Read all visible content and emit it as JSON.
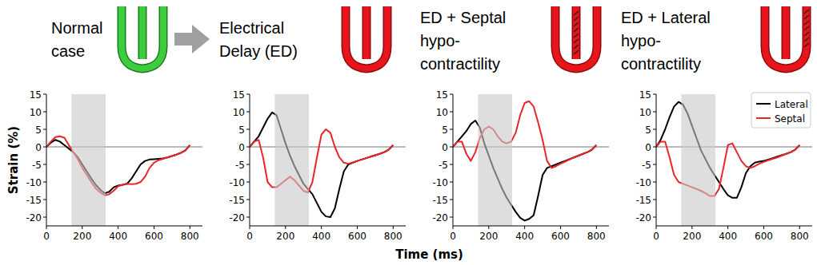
{
  "x_label": "Time (ms)",
  "chart_data": [
    {
      "type": "line",
      "title": [
        "Normal",
        "case"
      ],
      "y_label": "Strain (%)",
      "xlim": [
        0,
        870
      ],
      "xticks": [
        0,
        200,
        400,
        600,
        800
      ],
      "ylim": [
        -22.5,
        15
      ],
      "yticks": [
        -20,
        -15,
        -10,
        -5,
        0,
        5,
        10,
        15
      ],
      "shaded_region": [
        140,
        330
      ],
      "hline": 0,
      "x": [
        0,
        25,
        50,
        75,
        100,
        125,
        150,
        175,
        200,
        225,
        250,
        275,
        300,
        325,
        350,
        375,
        400,
        425,
        450,
        475,
        500,
        525,
        550,
        575,
        600,
        625,
        650,
        675,
        700,
        725,
        750,
        775,
        800
      ],
      "series": [
        {
          "name": "Lateral",
          "color": "#000000",
          "values": [
            0,
            1.2,
            2,
            1.5,
            0.5,
            -0.5,
            -1.5,
            -3,
            -5,
            -7,
            -9,
            -10.8,
            -12.2,
            -13.2,
            -12.8,
            -11.5,
            -11,
            -10.8,
            -10.5,
            -9,
            -7,
            -5,
            -4,
            -3.6,
            -3.5,
            -3.4,
            -3.3,
            -3,
            -2.6,
            -2.2,
            -1.7,
            -1,
            0.5
          ]
        },
        {
          "name": "Septal",
          "color": "#e8262b",
          "values": [
            0,
            1.5,
            2.8,
            3,
            2.6,
            0.5,
            -1.5,
            -3.5,
            -6,
            -8,
            -10,
            -11.8,
            -13,
            -13.8,
            -13.5,
            -12.5,
            -11.2,
            -10.8,
            -10.5,
            -10.6,
            -10.5,
            -10,
            -8.5,
            -6,
            -4.5,
            -3.8,
            -3.4,
            -3,
            -2.6,
            -2.2,
            -1.7,
            -1,
            0.5
          ]
        }
      ]
    },
    {
      "type": "line",
      "title": [
        "Electrical",
        "Delay (ED)"
      ],
      "xlim": [
        0,
        870
      ],
      "xticks": [
        0,
        200,
        400,
        600,
        800
      ],
      "ylim": [
        -22.5,
        15
      ],
      "yticks": [
        -20,
        -15,
        -10,
        -5,
        0,
        5,
        10,
        15
      ],
      "shaded_region": [
        140,
        330
      ],
      "hline": 0,
      "x": [
        0,
        25,
        50,
        75,
        100,
        125,
        150,
        175,
        200,
        225,
        250,
        275,
        300,
        325,
        350,
        375,
        400,
        425,
        450,
        475,
        500,
        525,
        550,
        575,
        600,
        625,
        650,
        675,
        700,
        725,
        750,
        775,
        800
      ],
      "series": [
        {
          "name": "Lateral",
          "color": "#000000",
          "values": [
            0,
            1.5,
            3,
            5.5,
            8,
            9.8,
            9,
            5,
            1,
            -2.5,
            -5.5,
            -8,
            -10.5,
            -12,
            -13.5,
            -16,
            -18.5,
            -19.8,
            -20,
            -17.5,
            -12,
            -7,
            -5,
            -4.5,
            -4,
            -3.6,
            -3.2,
            -2.8,
            -2.4,
            -2,
            -1.5,
            -0.8,
            0.5
          ]
        },
        {
          "name": "Septal",
          "color": "#e8262b",
          "values": [
            0,
            1.5,
            2,
            -3,
            -10,
            -11.5,
            -11.5,
            -10.5,
            -9.5,
            -8.5,
            -9.5,
            -11,
            -12.5,
            -13,
            -10,
            -3,
            3.5,
            5,
            4,
            0,
            -3,
            -4.5,
            -4.8,
            -4.5,
            -4,
            -3.6,
            -3.2,
            -2.8,
            -2.4,
            -2,
            -1.5,
            -0.8,
            0.5
          ]
        }
      ]
    },
    {
      "type": "line",
      "title": [
        "ED + Septal",
        "hypo-",
        "contractility"
      ],
      "xlim": [
        0,
        870
      ],
      "xticks": [
        0,
        200,
        400,
        600,
        800
      ],
      "ylim": [
        -22.5,
        15
      ],
      "yticks": [
        -20,
        -15,
        -10,
        -5,
        0,
        5,
        10,
        15
      ],
      "shaded_region": [
        140,
        330
      ],
      "hline": 0,
      "x": [
        0,
        25,
        50,
        75,
        100,
        125,
        150,
        175,
        200,
        225,
        250,
        275,
        300,
        325,
        350,
        375,
        400,
        425,
        450,
        475,
        500,
        525,
        550,
        575,
        600,
        625,
        650,
        675,
        700,
        725,
        750,
        775,
        800
      ],
      "series": [
        {
          "name": "Lateral",
          "color": "#000000",
          "values": [
            0,
            1.5,
            3,
            4.5,
            6.5,
            7.5,
            5.5,
            1,
            -2.5,
            -6,
            -9,
            -12,
            -14.5,
            -16.5,
            -18.5,
            -20.2,
            -21,
            -20.5,
            -19.5,
            -14,
            -8,
            -6,
            -5.5,
            -5,
            -4.5,
            -4,
            -3.5,
            -3,
            -2.5,
            -2,
            -1.5,
            -0.8,
            0.5
          ]
        },
        {
          "name": "Septal",
          "color": "#e8262b",
          "values": [
            0,
            1.5,
            1.5,
            -2,
            -4,
            -1.5,
            2.5,
            5,
            5.8,
            5,
            3,
            1.5,
            1,
            1.5,
            4,
            9,
            12.5,
            13,
            11.5,
            7,
            2,
            -4,
            -6,
            -5.5,
            -4.8,
            -4.2,
            -3.6,
            -3,
            -2.5,
            -2,
            -1.5,
            -0.8,
            0.5
          ]
        }
      ]
    },
    {
      "type": "line",
      "title": [
        "ED + Lateral",
        "hypo-",
        "contractility"
      ],
      "legend": "upper right",
      "xlim": [
        0,
        870
      ],
      "xticks": [
        0,
        200,
        400,
        600,
        800
      ],
      "ylim": [
        -22.5,
        15
      ],
      "yticks": [
        -20,
        -15,
        -10,
        -5,
        0,
        5,
        10,
        15
      ],
      "shaded_region": [
        140,
        330
      ],
      "hline": 0,
      "x": [
        0,
        25,
        50,
        75,
        100,
        125,
        150,
        175,
        200,
        225,
        250,
        275,
        300,
        325,
        350,
        375,
        400,
        425,
        450,
        475,
        500,
        525,
        550,
        575,
        600,
        625,
        650,
        675,
        700,
        725,
        750,
        775,
        800
      ],
      "series": [
        {
          "name": "Lateral",
          "color": "#000000",
          "values": [
            0,
            2,
            5,
            8.5,
            11.5,
            12.8,
            12,
            9.5,
            6,
            2.5,
            -1,
            -3.5,
            -6,
            -8,
            -10,
            -12,
            -13.8,
            -14.5,
            -14.5,
            -11.5,
            -7.5,
            -5.5,
            -4.5,
            -4.2,
            -4,
            -3.6,
            -3.2,
            -2.8,
            -2.4,
            -2,
            -1.5,
            -0.8,
            0.5
          ]
        },
        {
          "name": "Septal",
          "color": "#e8262b",
          "values": [
            0,
            1.5,
            1.5,
            -3,
            -8,
            -10,
            -10.5,
            -11,
            -11.5,
            -12,
            -12.5,
            -13.2,
            -14,
            -14,
            -12,
            -6,
            0.5,
            1,
            -1.5,
            -4,
            -5.5,
            -6,
            -5.5,
            -4.8,
            -4.3,
            -3.8,
            -3.4,
            -3,
            -2.5,
            -2,
            -1.5,
            -0.8,
            0.5
          ]
        }
      ]
    }
  ]
}
